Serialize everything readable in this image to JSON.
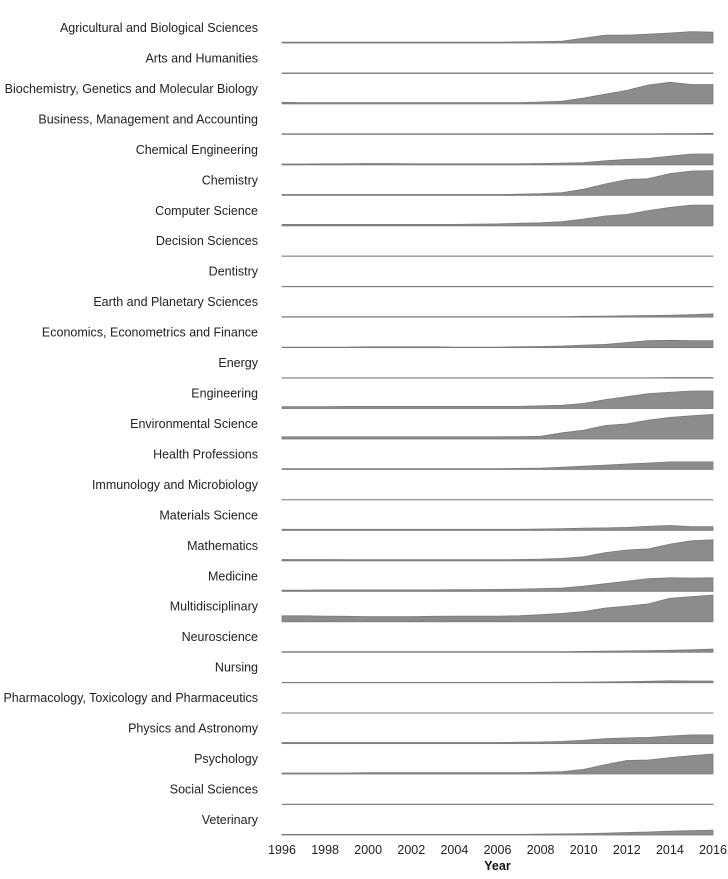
{
  "chart_data": {
    "type": "area",
    "subtype": "small-multiples",
    "xlabel": "Year",
    "x_ticks": [
      "1996",
      "1998",
      "2000",
      "2002",
      "2004",
      "2006",
      "2008",
      "2010",
      "2012",
      "2014",
      "2016"
    ],
    "x": [
      1996,
      1997,
      1998,
      1999,
      2000,
      2001,
      2002,
      2003,
      2004,
      2005,
      2006,
      2007,
      2008,
      2009,
      2010,
      2011,
      2012,
      2013,
      2014,
      2015,
      2016
    ],
    "xlim": [
      1996,
      2016
    ],
    "shared_ylim": [
      0,
      1
    ],
    "color": "#8c8c8c",
    "grid": true,
    "legend": "none",
    "series": [
      {
        "name": "Agricultural and Biological Sciences",
        "values": [
          0.03,
          0.03,
          0.03,
          0.03,
          0.03,
          0.03,
          0.03,
          0.03,
          0.03,
          0.03,
          0.03,
          0.04,
          0.05,
          0.07,
          0.18,
          0.29,
          0.29,
          0.33,
          0.37,
          0.42,
          0.4
        ]
      },
      {
        "name": "Arts and Humanities",
        "values": [
          0.02,
          0.02,
          0.02,
          0.02,
          0.02,
          0.02,
          0.02,
          0.02,
          0.02,
          0.02,
          0.02,
          0.02,
          0.02,
          0.02,
          0.02,
          0.02,
          0.02,
          0.02,
          0.02,
          0.02,
          0.02
        ]
      },
      {
        "name": "Biochemistry, Genetics and Molecular Biology",
        "values": [
          0.06,
          0.05,
          0.05,
          0.05,
          0.05,
          0.05,
          0.05,
          0.05,
          0.05,
          0.05,
          0.05,
          0.05,
          0.07,
          0.1,
          0.22,
          0.36,
          0.5,
          0.7,
          0.8,
          0.72,
          0.72
        ]
      },
      {
        "name": "Business, Management and Accounting",
        "values": [
          0.02,
          0.02,
          0.02,
          0.02,
          0.02,
          0.02,
          0.02,
          0.02,
          0.02,
          0.02,
          0.02,
          0.02,
          0.02,
          0.02,
          0.02,
          0.02,
          0.02,
          0.02,
          0.03,
          0.03,
          0.04
        ]
      },
      {
        "name": "Chemical Engineering",
        "values": [
          0.03,
          0.03,
          0.04,
          0.04,
          0.05,
          0.05,
          0.04,
          0.04,
          0.04,
          0.04,
          0.04,
          0.04,
          0.05,
          0.06,
          0.08,
          0.15,
          0.2,
          0.24,
          0.32,
          0.4,
          0.4
        ]
      },
      {
        "name": "Chemistry",
        "values": [
          0.03,
          0.03,
          0.03,
          0.03,
          0.03,
          0.03,
          0.03,
          0.03,
          0.03,
          0.03,
          0.03,
          0.04,
          0.06,
          0.1,
          0.23,
          0.42,
          0.58,
          0.62,
          0.8,
          0.9,
          0.91
        ]
      },
      {
        "name": "Computer Science",
        "values": [
          0.05,
          0.05,
          0.05,
          0.05,
          0.05,
          0.05,
          0.05,
          0.05,
          0.05,
          0.06,
          0.07,
          0.09,
          0.11,
          0.15,
          0.25,
          0.36,
          0.42,
          0.56,
          0.68,
          0.76,
          0.76
        ]
      },
      {
        "name": "Decision Sciences",
        "values": [
          0.01,
          0.01,
          0.01,
          0.01,
          0.01,
          0.01,
          0.01,
          0.01,
          0.01,
          0.01,
          0.01,
          0.01,
          0.01,
          0.01,
          0.01,
          0.01,
          0.01,
          0.01,
          0.01,
          0.01,
          0.01
        ]
      },
      {
        "name": "Dentistry",
        "values": [
          0.01,
          0.01,
          0.01,
          0.01,
          0.01,
          0.01,
          0.01,
          0.01,
          0.01,
          0.01,
          0.01,
          0.01,
          0.01,
          0.01,
          0.01,
          0.01,
          0.01,
          0.01,
          0.01,
          0.01,
          0.01
        ]
      },
      {
        "name": "Earth and Planetary Sciences",
        "values": [
          0.02,
          0.02,
          0.02,
          0.02,
          0.02,
          0.02,
          0.02,
          0.02,
          0.02,
          0.02,
          0.02,
          0.02,
          0.02,
          0.02,
          0.03,
          0.04,
          0.05,
          0.06,
          0.07,
          0.09,
          0.12
        ]
      },
      {
        "name": "Economics, Econometrics and Finance",
        "values": [
          0.02,
          0.02,
          0.02,
          0.02,
          0.03,
          0.03,
          0.03,
          0.03,
          0.02,
          0.02,
          0.02,
          0.03,
          0.04,
          0.06,
          0.09,
          0.12,
          0.19,
          0.26,
          0.27,
          0.26,
          0.26
        ]
      },
      {
        "name": "Energy",
        "values": [
          0.01,
          0.01,
          0.01,
          0.01,
          0.01,
          0.01,
          0.01,
          0.01,
          0.01,
          0.01,
          0.01,
          0.01,
          0.01,
          0.01,
          0.01,
          0.01,
          0.01,
          0.01,
          0.02,
          0.02,
          0.02
        ]
      },
      {
        "name": "Engineering",
        "values": [
          0.07,
          0.07,
          0.07,
          0.08,
          0.08,
          0.08,
          0.08,
          0.08,
          0.08,
          0.08,
          0.08,
          0.08,
          0.1,
          0.12,
          0.19,
          0.33,
          0.44,
          0.55,
          0.6,
          0.65,
          0.65
        ]
      },
      {
        "name": "Environmental Science",
        "values": [
          0.08,
          0.08,
          0.08,
          0.08,
          0.08,
          0.08,
          0.08,
          0.08,
          0.08,
          0.08,
          0.08,
          0.09,
          0.1,
          0.23,
          0.33,
          0.5,
          0.56,
          0.7,
          0.8,
          0.86,
          0.91
        ]
      },
      {
        "name": "Health Professions",
        "values": [
          0.03,
          0.03,
          0.03,
          0.03,
          0.03,
          0.03,
          0.03,
          0.03,
          0.03,
          0.03,
          0.03,
          0.04,
          0.05,
          0.08,
          0.12,
          0.16,
          0.2,
          0.24,
          0.28,
          0.28,
          0.28
        ]
      },
      {
        "name": "Immunology and Microbiology",
        "values": [
          0.01,
          0.01,
          0.01,
          0.01,
          0.01,
          0.01,
          0.01,
          0.01,
          0.01,
          0.01,
          0.01,
          0.01,
          0.01,
          0.01,
          0.01,
          0.01,
          0.01,
          0.01,
          0.01,
          0.01,
          0.01
        ]
      },
      {
        "name": "Materials Science",
        "values": [
          0.04,
          0.04,
          0.04,
          0.04,
          0.04,
          0.04,
          0.04,
          0.04,
          0.04,
          0.04,
          0.04,
          0.04,
          0.05,
          0.06,
          0.08,
          0.09,
          0.11,
          0.15,
          0.18,
          0.14,
          0.14
        ]
      },
      {
        "name": "Mathematics",
        "values": [
          0.05,
          0.05,
          0.05,
          0.04,
          0.04,
          0.04,
          0.04,
          0.04,
          0.04,
          0.04,
          0.04,
          0.05,
          0.06,
          0.09,
          0.15,
          0.3,
          0.4,
          0.44,
          0.62,
          0.74,
          0.78
        ]
      },
      {
        "name": "Medicine",
        "values": [
          0.04,
          0.04,
          0.05,
          0.05,
          0.05,
          0.05,
          0.05,
          0.05,
          0.06,
          0.06,
          0.07,
          0.08,
          0.1,
          0.12,
          0.19,
          0.28,
          0.37,
          0.47,
          0.5,
          0.49,
          0.5
        ]
      },
      {
        "name": "Multidisciplinary",
        "values": [
          0.22,
          0.22,
          0.21,
          0.2,
          0.19,
          0.19,
          0.19,
          0.2,
          0.21,
          0.21,
          0.21,
          0.22,
          0.26,
          0.31,
          0.38,
          0.51,
          0.58,
          0.66,
          0.87,
          0.93,
          0.99
        ]
      },
      {
        "name": "Neuroscience",
        "values": [
          0.02,
          0.02,
          0.02,
          0.02,
          0.02,
          0.02,
          0.02,
          0.02,
          0.02,
          0.02,
          0.02,
          0.02,
          0.02,
          0.02,
          0.03,
          0.04,
          0.05,
          0.06,
          0.07,
          0.09,
          0.12
        ]
      },
      {
        "name": "Nursing",
        "values": [
          0.01,
          0.01,
          0.01,
          0.01,
          0.01,
          0.01,
          0.01,
          0.01,
          0.01,
          0.01,
          0.01,
          0.01,
          0.01,
          0.02,
          0.02,
          0.03,
          0.04,
          0.05,
          0.07,
          0.06,
          0.06
        ]
      },
      {
        "name": "Pharmacology, Toxicology and Pharmaceutics",
        "values": [
          0.01,
          0.01,
          0.01,
          0.01,
          0.01,
          0.01,
          0.01,
          0.01,
          0.01,
          0.01,
          0.01,
          0.01,
          0.01,
          0.01,
          0.01,
          0.01,
          0.01,
          0.01,
          0.01,
          0.01,
          0.01
        ]
      },
      {
        "name": "Physics and Astronomy",
        "values": [
          0.04,
          0.04,
          0.04,
          0.04,
          0.04,
          0.04,
          0.04,
          0.04,
          0.04,
          0.04,
          0.04,
          0.05,
          0.06,
          0.08,
          0.12,
          0.18,
          0.21,
          0.23,
          0.28,
          0.32,
          0.32
        ]
      },
      {
        "name": "Psychology",
        "values": [
          0.04,
          0.04,
          0.04,
          0.04,
          0.05,
          0.05,
          0.05,
          0.05,
          0.05,
          0.05,
          0.05,
          0.05,
          0.07,
          0.09,
          0.17,
          0.35,
          0.5,
          0.52,
          0.61,
          0.68,
          0.74
        ]
      },
      {
        "name": "Social Sciences",
        "values": [
          0.01,
          0.01,
          0.01,
          0.01,
          0.01,
          0.01,
          0.01,
          0.01,
          0.01,
          0.01,
          0.01,
          0.01,
          0.01,
          0.01,
          0.01,
          0.01,
          0.01,
          0.01,
          0.01,
          0.01,
          0.01
        ]
      },
      {
        "name": "Veterinary",
        "values": [
          0.02,
          0.02,
          0.02,
          0.02,
          0.02,
          0.02,
          0.02,
          0.02,
          0.02,
          0.02,
          0.02,
          0.02,
          0.03,
          0.04,
          0.05,
          0.07,
          0.09,
          0.11,
          0.14,
          0.16,
          0.18
        ]
      }
    ]
  }
}
